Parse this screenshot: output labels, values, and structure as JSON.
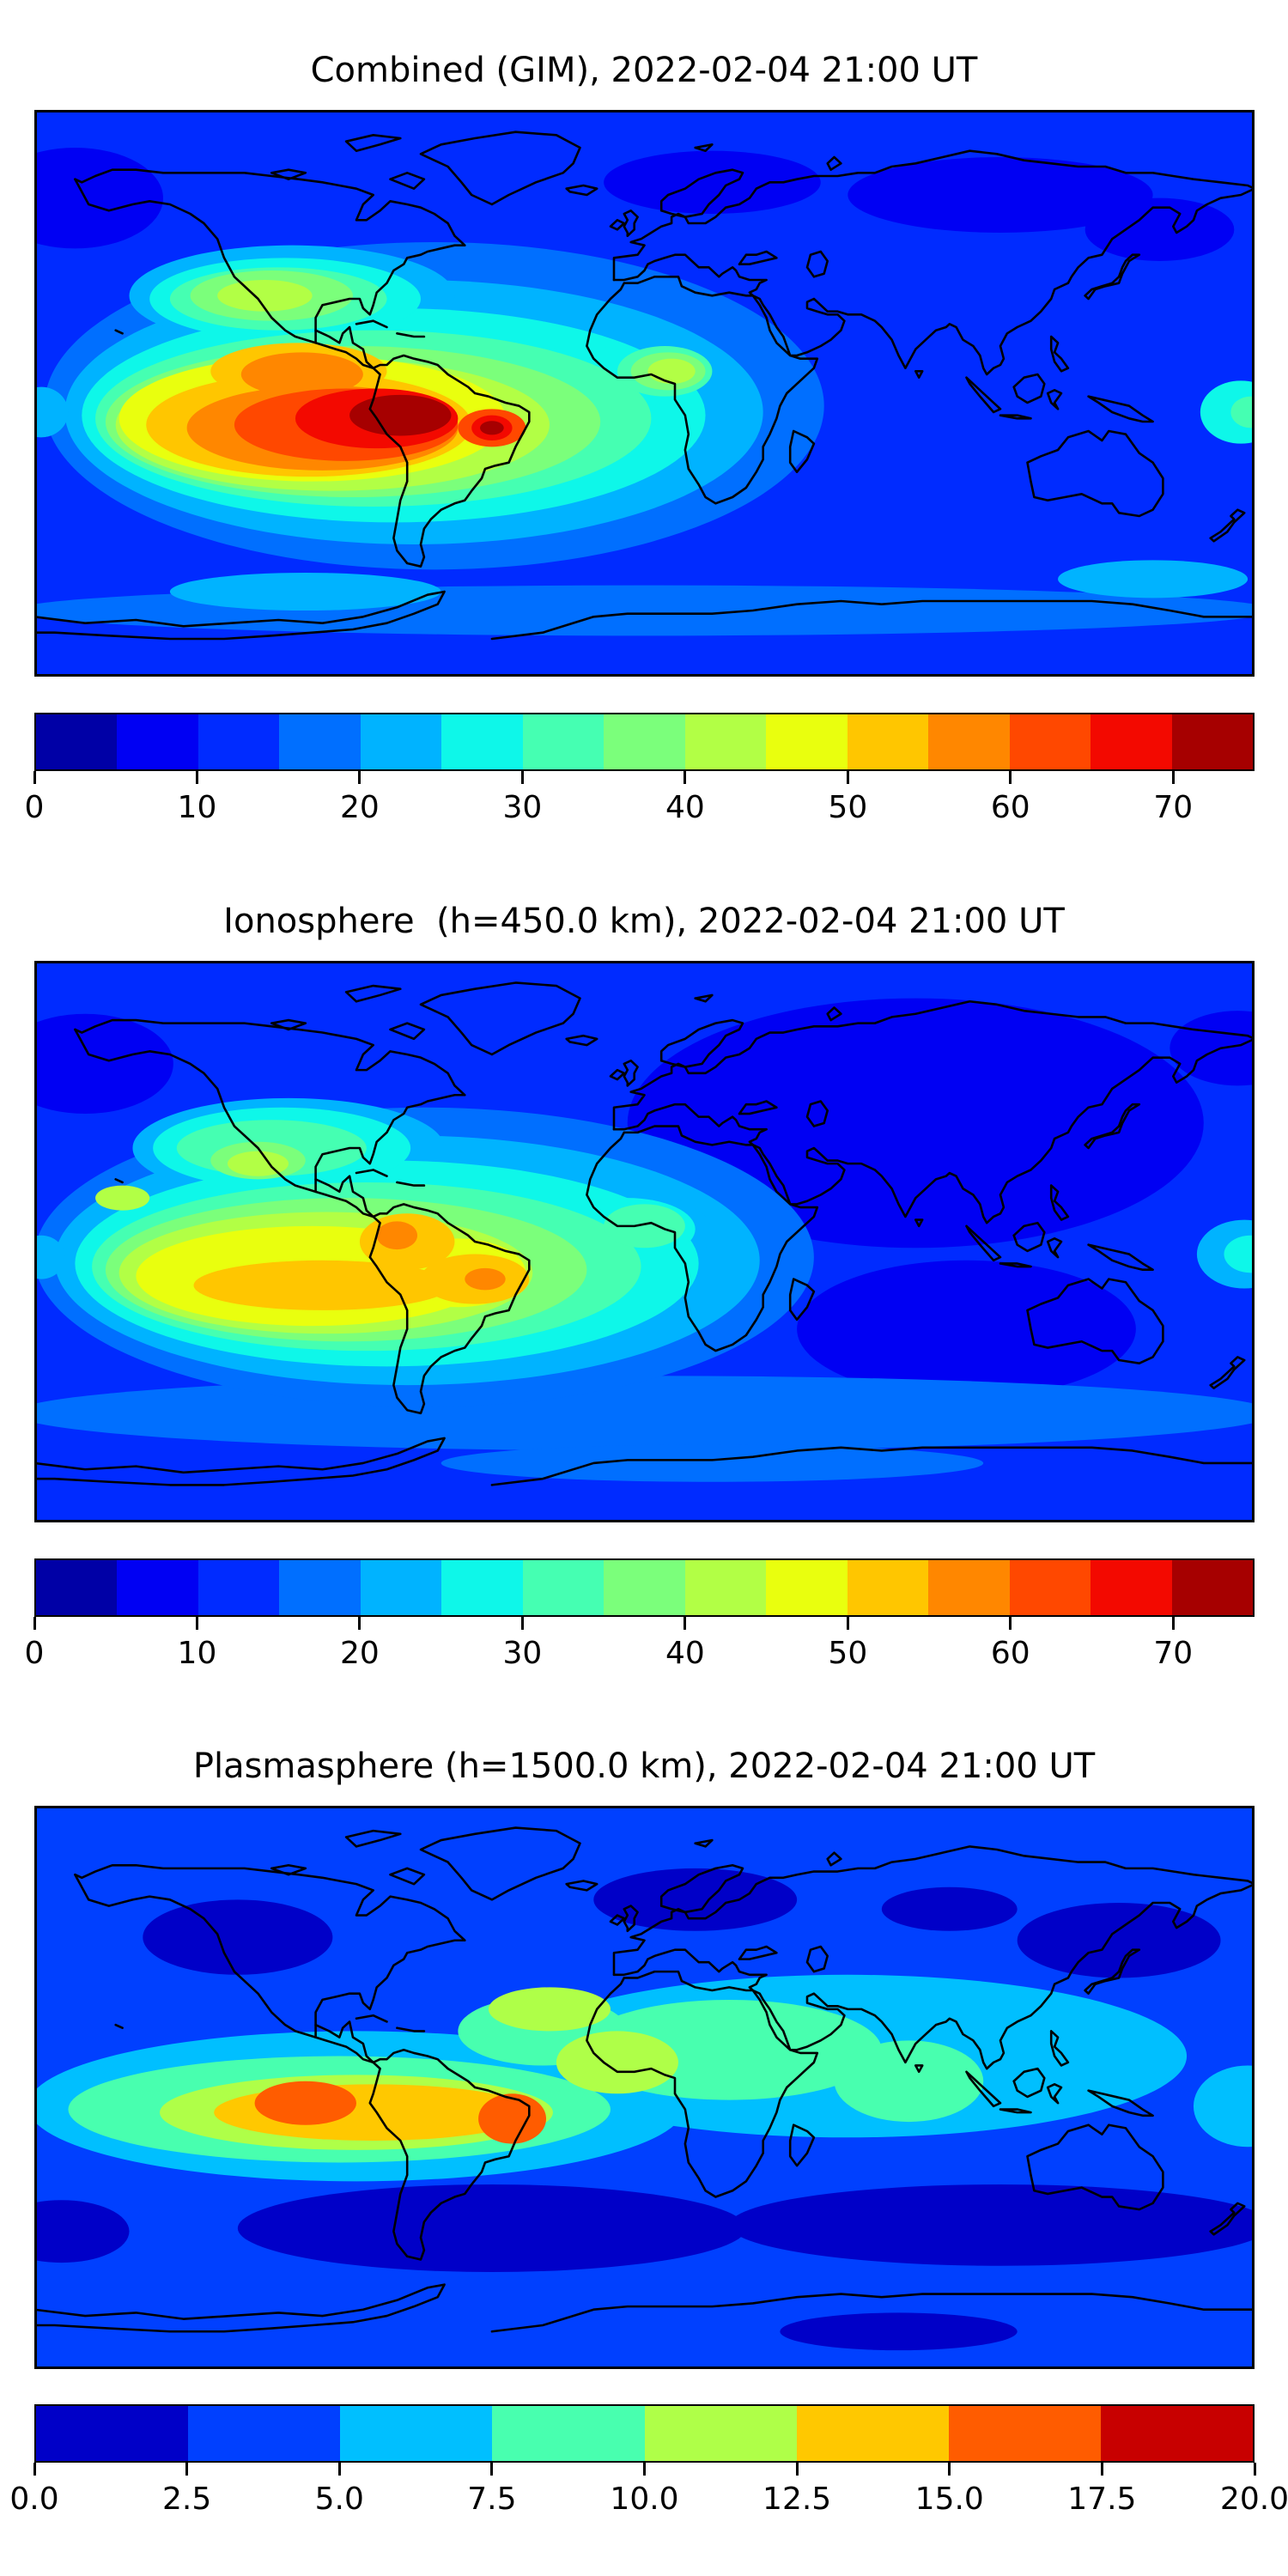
{
  "page": {
    "background": "#ffffff"
  },
  "panels": [
    {
      "id": "combined",
      "title": "Combined (GIM), 2022-02-04 21:00 UT",
      "colorbar": {
        "vmin": 0,
        "vmax": 75,
        "tick_labels": [
          "0",
          "10",
          "20",
          "30",
          "40",
          "50",
          "60",
          "70"
        ],
        "tick_values": [
          0,
          10,
          20,
          30,
          40,
          50,
          60,
          70
        ],
        "colors": [
          "#0000a6",
          "#0000f3",
          "#002bff",
          "#006fff",
          "#00b3ff",
          "#0ef7e9",
          "#45ffb2",
          "#7bff7b",
          "#b2ff45",
          "#e9ff0e",
          "#ffc600",
          "#ff8700",
          "#ff4800",
          "#f30900",
          "#a60000"
        ]
      }
    },
    {
      "id": "ionosphere",
      "title": "Ionosphere  (h=450.0 km), 2022-02-04 21:00 UT",
      "colorbar": {
        "vmin": 0,
        "vmax": 75,
        "tick_labels": [
          "0",
          "10",
          "20",
          "30",
          "40",
          "50",
          "60",
          "70"
        ],
        "tick_values": [
          0,
          10,
          20,
          30,
          40,
          50,
          60,
          70
        ],
        "colors": [
          "#0000a6",
          "#0000f3",
          "#002bff",
          "#006fff",
          "#00b3ff",
          "#0ef7e9",
          "#45ffb2",
          "#7bff7b",
          "#b2ff45",
          "#e9ff0e",
          "#ffc600",
          "#ff8700",
          "#ff4800",
          "#f30900",
          "#a60000"
        ]
      }
    },
    {
      "id": "plasmasphere",
      "title": "Plasmasphere (h=1500.0 km), 2022-02-04 21:00 UT",
      "colorbar": {
        "vmin": 0,
        "vmax": 20,
        "tick_labels": [
          "0.0",
          "2.5",
          "5.0",
          "7.5",
          "10.0",
          "12.5",
          "15.0",
          "17.5",
          "20.0"
        ],
        "tick_values": [
          0,
          2.5,
          5,
          7.5,
          10,
          12.5,
          15,
          17.5,
          20
        ],
        "colors": [
          "#0000c8",
          "#0040ff",
          "#00bfff",
          "#48ffaf",
          "#afff48",
          "#ffc800",
          "#ff5c00",
          "#c80000"
        ]
      }
    }
  ],
  "chart_data": [
    {
      "type": "heatmap",
      "subtype": "filled-contour-world-map",
      "title": "Combined (GIM), 2022-02-04 21:00 UT",
      "time": "2022-02-04 21:00 UT",
      "projection": "equirectangular",
      "lon_range": [
        -180,
        180
      ],
      "lat_range": [
        -90,
        90
      ],
      "levels": {
        "min": 0,
        "max": 75,
        "step": 5
      },
      "palette": [
        "#0000a6",
        "#0000f3",
        "#002bff",
        "#006fff",
        "#00b3ff",
        "#0ef7e9",
        "#45ffb2",
        "#7bff7b",
        "#b2ff45",
        "#e9ff0e",
        "#ffc600",
        "#ff8700",
        "#ff4800",
        "#f30900",
        "#a60000"
      ],
      "background_level_color": "#002bff",
      "coastline_color": "#000000",
      "peaks": [
        {
          "lon": -72,
          "lat": -7,
          "value_bin": "70-75"
        },
        {
          "lon": -45,
          "lat": -11,
          "value_bin": "70-75"
        }
      ],
      "regions": [
        [
          1,
          -168,
          62,
          26,
          16
        ],
        [
          1,
          20,
          67,
          32,
          10
        ],
        [
          1,
          105,
          63,
          45,
          12
        ],
        [
          1,
          152,
          52,
          22,
          10
        ],
        [
          3,
          0,
          -69,
          186,
          8
        ],
        [
          4,
          -100,
          -63,
          40,
          6
        ],
        [
          4,
          150,
          -59,
          28,
          6
        ],
        [
          3,
          -62,
          -4,
          115,
          52
        ],
        [
          4,
          -68,
          -6,
          103,
          42
        ],
        [
          4,
          -15,
          4,
          34,
          16
        ],
        [
          4,
          -104,
          31,
          48,
          16
        ],
        [
          4,
          -178,
          -6,
          8,
          8
        ],
        [
          5,
          -74,
          -7,
          92,
          34
        ],
        [
          5,
          -18,
          3,
          26,
          12
        ],
        [
          5,
          -106,
          30,
          40,
          13
        ],
        [
          5,
          176,
          -6,
          12,
          10
        ],
        [
          6,
          -80,
          -8,
          82,
          28
        ],
        [
          6,
          6,
          7,
          14,
          8
        ],
        [
          6,
          -108,
          30,
          32,
          10
        ],
        [
          6,
          179,
          -6,
          6,
          5
        ],
        [
          7,
          -86,
          -9,
          73,
          24
        ],
        [
          7,
          7,
          7,
          11,
          6
        ],
        [
          7,
          -110,
          31,
          24,
          8
        ],
        [
          8,
          -92,
          -10,
          64,
          21
        ],
        [
          8,
          8,
          7,
          7,
          4
        ],
        [
          8,
          -112,
          31,
          14,
          5
        ],
        [
          9,
          -98,
          -8,
          57,
          20
        ],
        [
          10,
          -99,
          -10,
          48,
          16.5
        ],
        [
          10,
          -102,
          7,
          26,
          9
        ],
        [
          11,
          -95,
          -11,
          40,
          13.5
        ],
        [
          11,
          -101,
          6,
          18,
          7
        ],
        [
          12,
          -88,
          -10,
          33,
          11.5
        ],
        [
          12,
          -45,
          -11,
          10,
          6
        ],
        [
          13,
          -79,
          -8,
          24,
          9.5
        ],
        [
          13,
          -45,
          -11,
          6,
          4
        ],
        [
          14,
          -72,
          -7,
          15,
          6.5
        ],
        [
          14,
          -45,
          -11,
          3.5,
          2.2
        ]
      ]
    },
    {
      "type": "heatmap",
      "subtype": "filled-contour-world-map",
      "title": "Ionosphere  (h=450.0 km), 2022-02-04 21:00 UT",
      "time": "2022-02-04 21:00 UT",
      "projection": "equirectangular",
      "lon_range": [
        -180,
        180
      ],
      "lat_range": [
        -90,
        90
      ],
      "levels": {
        "min": 0,
        "max": 75,
        "step": 5
      },
      "palette": [
        "#0000a6",
        "#0000f3",
        "#002bff",
        "#006fff",
        "#00b3ff",
        "#0ef7e9",
        "#45ffb2",
        "#7bff7b",
        "#b2ff45",
        "#e9ff0e",
        "#ffc600",
        "#ff8700",
        "#ff4800",
        "#f30900",
        "#a60000"
      ],
      "background_level_color": "#002bff",
      "coastline_color": "#000000",
      "peaks": [
        {
          "lon": -73,
          "lat": 2,
          "value_bin": "55-60"
        },
        {
          "lon": -47,
          "lat": -12,
          "value_bin": "55-60"
        }
      ],
      "regions": [
        [
          1,
          80,
          38,
          85,
          40
        ],
        [
          1,
          95,
          -28,
          50,
          22
        ],
        [
          1,
          -165,
          57,
          26,
          16
        ],
        [
          1,
          175,
          62,
          20,
          12
        ],
        [
          3,
          0,
          -55,
          186,
          12
        ],
        [
          3,
          20,
          -71,
          80,
          6
        ],
        [
          3,
          -65,
          -5,
          115,
          48
        ],
        [
          4,
          -70,
          -6,
          104,
          40
        ],
        [
          4,
          -10,
          3,
          30,
          14
        ],
        [
          4,
          -105,
          30,
          46,
          16
        ],
        [
          4,
          177,
          -4,
          14,
          11
        ],
        [
          4,
          -178,
          -5,
          7,
          7
        ],
        [
          5,
          -76,
          -7,
          92,
          33
        ],
        [
          5,
          -5,
          4,
          20,
          10
        ],
        [
          5,
          -107,
          30,
          38,
          13
        ],
        [
          5,
          179,
          -4,
          8,
          6
        ],
        [
          6,
          -82,
          -8,
          81,
          27
        ],
        [
          6,
          0,
          5,
          12,
          7
        ],
        [
          6,
          -110,
          30,
          28,
          9
        ],
        [
          7,
          -88,
          -9,
          71,
          23
        ],
        [
          7,
          -114,
          26,
          14,
          6
        ],
        [
          8,
          -94,
          -10,
          61,
          19.5
        ],
        [
          8,
          -114,
          25,
          9,
          4
        ],
        [
          8,
          -154,
          14,
          8,
          4
        ],
        [
          9,
          -98,
          -11,
          52,
          16
        ],
        [
          9,
          -55,
          -10,
          20,
          11
        ],
        [
          10,
          -95,
          -14,
          38,
          8
        ],
        [
          10,
          -70,
          0,
          14,
          9
        ],
        [
          10,
          -50,
          -12,
          16,
          8
        ],
        [
          11,
          -73,
          2,
          6,
          4.5
        ],
        [
          11,
          -47,
          -12,
          6,
          3.5
        ]
      ]
    },
    {
      "type": "heatmap",
      "subtype": "filled-contour-world-map",
      "title": "Plasmasphere (h=1500.0 km), 2022-02-04 21:00 UT",
      "time": "2022-02-04 21:00 UT",
      "projection": "equirectangular",
      "lon_range": [
        -180,
        180
      ],
      "lat_range": [
        -90,
        90
      ],
      "levels": {
        "min": 0,
        "max": 20,
        "step": 2.5
      },
      "palette": [
        "#0000c8",
        "#0040ff",
        "#00bfff",
        "#48ffaf",
        "#afff48",
        "#ffc800",
        "#ff5c00",
        "#c80000"
      ],
      "background_level_color": "#0040ff",
      "coastline_color": "#000000",
      "peaks": [
        {
          "lon": -100,
          "lat": -5,
          "value_bin": "15-17.5"
        },
        {
          "lon": -39,
          "lat": -10,
          "value_bin": "15-17.5"
        }
      ],
      "regions": [
        [
          0,
          -120,
          48,
          28,
          12
        ],
        [
          0,
          15,
          60,
          30,
          10
        ],
        [
          0,
          90,
          57,
          20,
          7
        ],
        [
          0,
          140,
          47,
          30,
          12
        ],
        [
          0,
          -45,
          -45,
          75,
          14
        ],
        [
          0,
          105,
          -44,
          80,
          13
        ],
        [
          0,
          -172,
          -46,
          20,
          10
        ],
        [
          0,
          75,
          -78,
          35,
          6
        ],
        [
          2,
          -85,
          -6,
          97,
          24
        ],
        [
          2,
          60,
          10,
          100,
          26
        ],
        [
          2,
          178,
          -6,
          16,
          13
        ],
        [
          3,
          -90,
          -7,
          80,
          17
        ],
        [
          3,
          25,
          12,
          45,
          16
        ],
        [
          3,
          78,
          2,
          22,
          13
        ],
        [
          3,
          -30,
          18,
          25,
          11
        ],
        [
          4,
          -85,
          -8,
          58,
          12
        ],
        [
          4,
          -8,
          8,
          18,
          10
        ],
        [
          4,
          -28,
          25,
          18,
          7
        ],
        [
          5,
          -80,
          -8,
          47,
          9
        ],
        [
          6,
          -100,
          -5,
          15,
          7
        ],
        [
          6,
          -39,
          -10,
          10,
          8
        ]
      ]
    }
  ]
}
